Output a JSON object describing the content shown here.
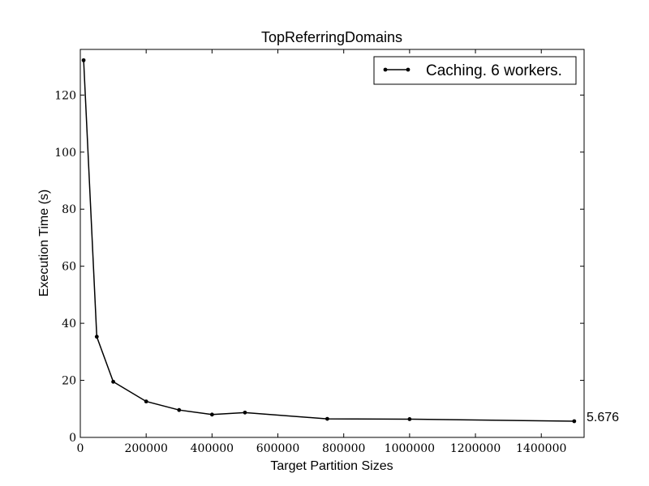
{
  "chart_data": {
    "type": "line",
    "title": "TopReferringDomains",
    "xlabel": "Target Partition Sizes",
    "ylabel": "Execution Time (s)",
    "xlim": [
      0,
      1530000
    ],
    "ylim": [
      0,
      136
    ],
    "xticks": [
      0,
      200000,
      400000,
      600000,
      800000,
      1000000,
      1200000,
      1400000
    ],
    "xtick_labels": [
      "0",
      "200000",
      "400000",
      "600000",
      "800000",
      "1000000",
      "1200000",
      "1400000"
    ],
    "yticks": [
      0,
      20,
      40,
      60,
      80,
      100,
      120
    ],
    "ytick_labels": [
      "0",
      "20",
      "40",
      "60",
      "80",
      "100",
      "120"
    ],
    "grid": false,
    "legend_position": "top-right",
    "series": [
      {
        "name": "Caching. 6 workers.",
        "color": "#000000",
        "marker": "dot",
        "x": [
          10000,
          50000,
          100000,
          200000,
          300000,
          400000,
          500000,
          750000,
          1000000,
          1500000
        ],
        "y": [
          132.2,
          35.3,
          19.5,
          12.6,
          9.6,
          8.0,
          8.7,
          6.5,
          6.4,
          5.676
        ]
      }
    ],
    "annotations": [
      {
        "text": "5.676",
        "x": 1500000,
        "y": 5.676
      }
    ]
  }
}
